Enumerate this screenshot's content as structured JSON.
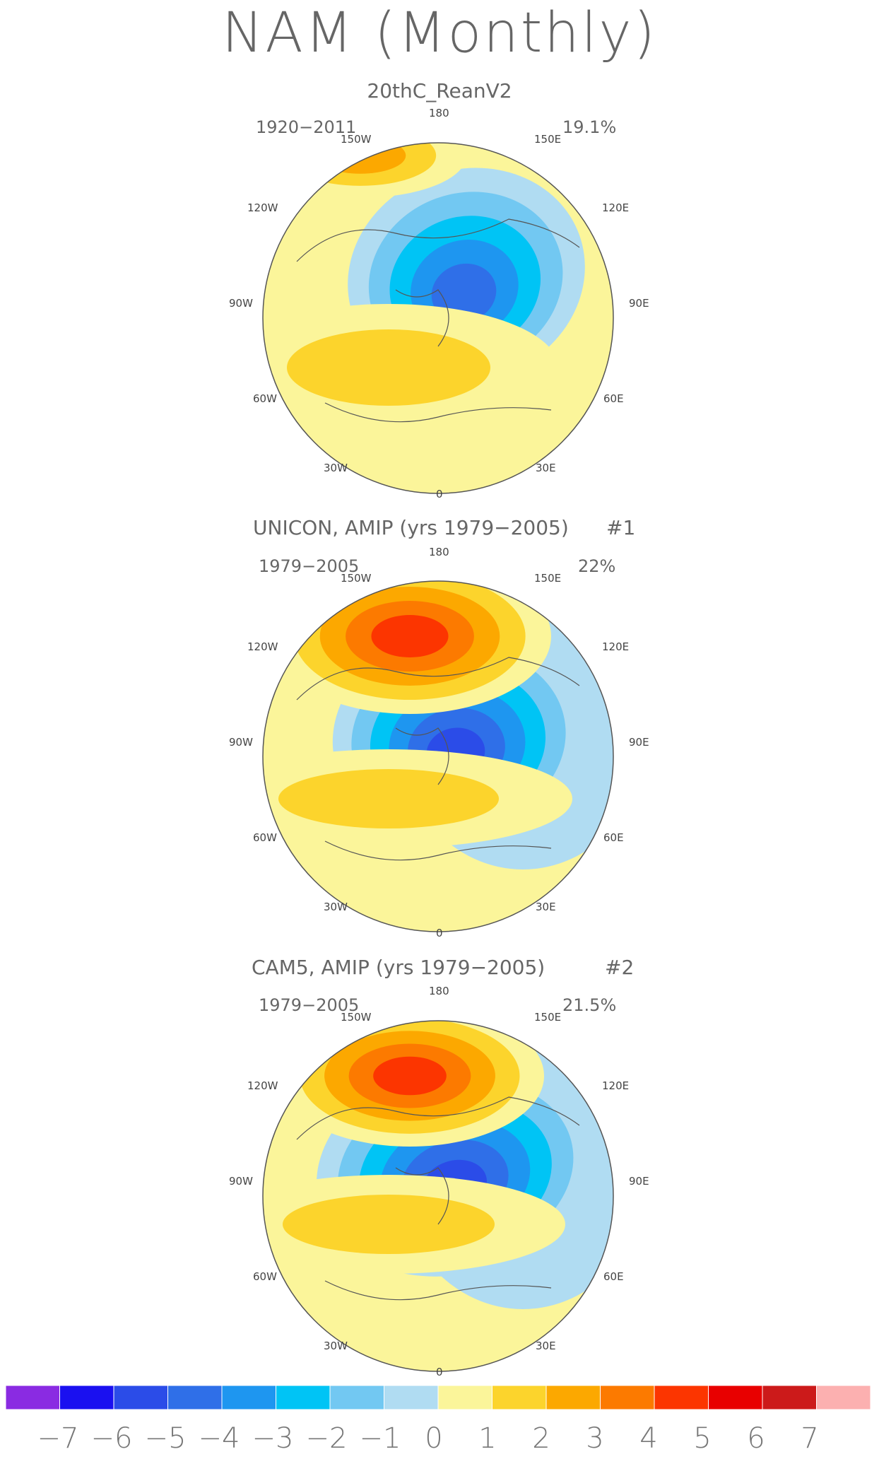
{
  "title": "NAM (Monthly)",
  "panels": [
    {
      "name": "20thC_ReanV2",
      "title": "20thC_ReanV2",
      "period": "1920-2011",
      "percent": "19.1%",
      "tag": ""
    },
    {
      "name": "UNICON",
      "title": "UNICON, AMIP (yrs 1979-2005)",
      "period": "1979-2005",
      "percent": "22%",
      "tag": "#1"
    },
    {
      "name": "CAM5",
      "title": "CAM5, AMIP (yrs 1979-2005)",
      "period": "1979-2005",
      "percent": "21.5%",
      "tag": "#2"
    }
  ],
  "lon_labels": [
    "180",
    "150W",
    "150E",
    "120W",
    "120E",
    "90W",
    "90E",
    "60W",
    "60E",
    "30W",
    "30E",
    "0"
  ],
  "colorbar": {
    "labels": [
      "-7",
      "-6",
      "-5",
      "-4",
      "-3",
      "-2",
      "-1",
      "0",
      "1",
      "2",
      "3",
      "4",
      "5",
      "6",
      "7"
    ],
    "colors": [
      "#8a2be2",
      "#1a10f0",
      "#2b4ce8",
      "#2f6fe8",
      "#1e96f0",
      "#00c4f5",
      "#72c8f2",
      "#b0dcf2",
      "#fbf59a",
      "#fcd42c",
      "#fca800",
      "#fc7a00",
      "#fc3500",
      "#e80000",
      "#cc1a1a",
      "#fcb0b0"
    ]
  },
  "chart_data": [
    {
      "type": "heatmap",
      "title": "20thC_ReanV2",
      "period": "1920-2011",
      "variance_explained": "19.1%",
      "projection": "north polar stereographic",
      "features": [
        {
          "region": "Arctic",
          "sign": "negative",
          "peak": -5
        },
        {
          "region": "North Atlantic",
          "sign": "positive",
          "peak": 3
        },
        {
          "region": "North Pacific",
          "sign": "positive",
          "peak": 2
        }
      ]
    },
    {
      "type": "heatmap",
      "title": "UNICON, AMIP (yrs 1979-2005)",
      "period": "1979-2005",
      "variance_explained": "22%",
      "projection": "north polar stereographic",
      "features": [
        {
          "region": "Arctic",
          "sign": "negative",
          "peak": -6
        },
        {
          "region": "North Pacific",
          "sign": "positive",
          "peak": 5
        },
        {
          "region": "North Atlantic",
          "sign": "positive",
          "peak": 2
        }
      ]
    },
    {
      "type": "heatmap",
      "title": "CAM5, AMIP (yrs 1979-2005)",
      "period": "1979-2005",
      "variance_explained": "21.5%",
      "projection": "north polar stereographic",
      "features": [
        {
          "region": "Arctic",
          "sign": "negative",
          "peak": -6
        },
        {
          "region": "North Pacific",
          "sign": "positive",
          "peak": 5
        },
        {
          "region": "North Atlantic",
          "sign": "positive",
          "peak": 2
        }
      ]
    }
  ]
}
